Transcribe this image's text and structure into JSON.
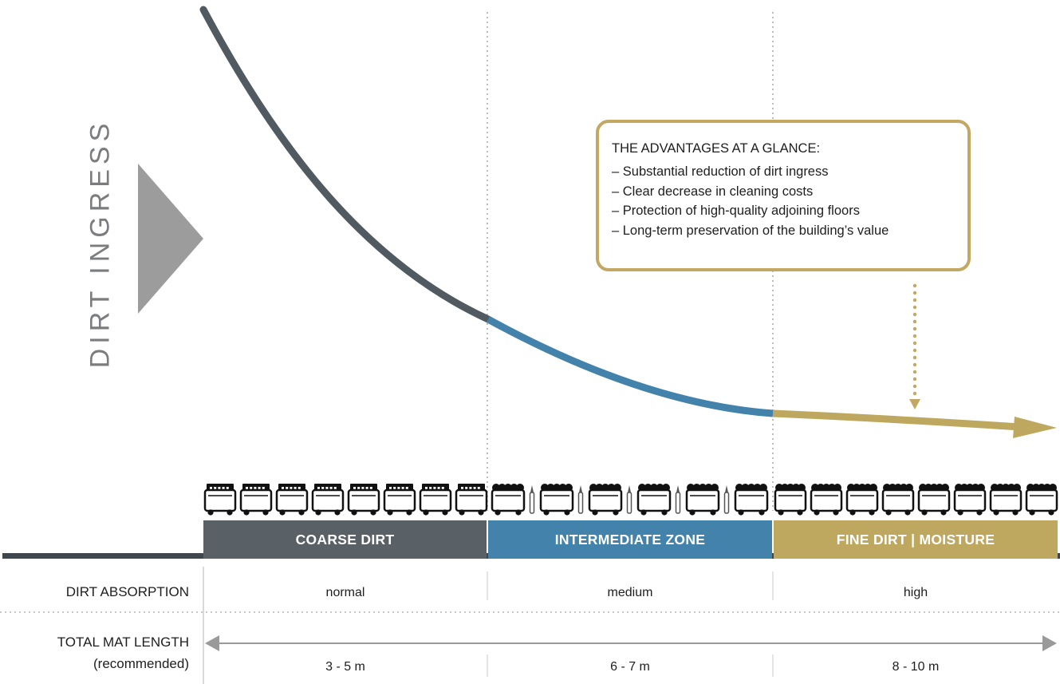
{
  "y_axis_title": "DIRT INGRESS",
  "advantages": {
    "title": "THE ADVANTAGES AT A GLANCE:",
    "items": [
      "– Substantial reduction of dirt ingress",
      "– Clear decrease in cleaning costs",
      "– Protection of high-quality adjoining floors",
      "– Long-term preservation of the building’s value"
    ]
  },
  "zones": [
    {
      "label": "COARSE DIRT",
      "color": "#596167"
    },
    {
      "label": "INTERMEDIATE ZONE",
      "color": "#4383ab"
    },
    {
      "label": "FINE DIRT | MOISTURE",
      "color": "#bea75f"
    }
  ],
  "rows": {
    "absorption": {
      "label": "DIRT ABSORPTION",
      "values": [
        "normal",
        "medium",
        "high"
      ]
    },
    "mat_length": {
      "label_line1": "TOTAL MAT LENGTH",
      "label_line2": "(recommended)",
      "values": [
        "3 - 5 m",
        "6 - 7 m",
        "8 - 10 m"
      ]
    }
  },
  "colors": {
    "curve_coarse": "#525a61",
    "curve_intermediate": "#4383ab",
    "curve_fine": "#bea75f",
    "arrow_gray": "#9a9a9a",
    "floor": "#3f474e"
  }
}
